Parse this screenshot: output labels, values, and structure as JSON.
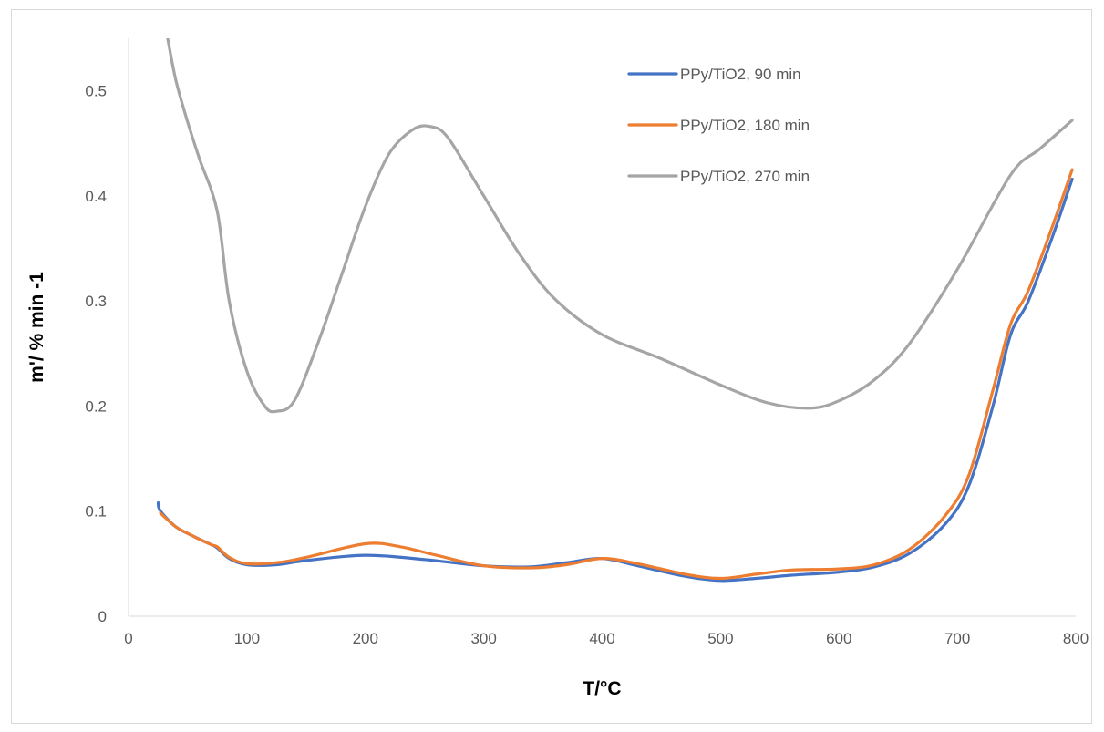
{
  "chart_data": {
    "type": "line",
    "title": "",
    "xlabel": "T/°C",
    "ylabel": "m'/ % min -1",
    "xlim": [
      0,
      800
    ],
    "ylim": [
      0,
      0.55
    ],
    "x_ticks": [
      "0",
      "100",
      "200",
      "300",
      "400",
      "500",
      "600",
      "700",
      "800"
    ],
    "y_ticks": [
      "0",
      "0.1",
      "0.2",
      "0.3",
      "0.4",
      "0.5"
    ],
    "grid": false,
    "legend_position": "top-right",
    "series": [
      {
        "name": "PPy/TiO2, 90 min",
        "color": "#4472C4",
        "x": [
          25,
          27,
          40,
          55,
          70,
          75,
          85,
          100,
          125,
          150,
          200,
          250,
          300,
          340,
          370,
          400,
          430,
          470,
          500,
          530,
          560,
          600,
          630,
          660,
          690,
          710,
          730,
          745,
          760,
          780,
          797
        ],
        "y": [
          0.108,
          0.1,
          0.085,
          0.076,
          0.068,
          0.065,
          0.055,
          0.049,
          0.049,
          0.053,
          0.058,
          0.054,
          0.048,
          0.047,
          0.051,
          0.055,
          0.048,
          0.038,
          0.034,
          0.036,
          0.039,
          0.042,
          0.047,
          0.06,
          0.088,
          0.125,
          0.2,
          0.268,
          0.3,
          0.36,
          0.416
        ]
      },
      {
        "name": "PPy/TiO2, 180 min",
        "color": "#ED7D31",
        "x": [
          27,
          40,
          55,
          70,
          75,
          85,
          100,
          125,
          150,
          200,
          230,
          260,
          300,
          340,
          370,
          400,
          430,
          470,
          500,
          530,
          560,
          600,
          630,
          660,
          690,
          710,
          730,
          745,
          760,
          780,
          797
        ],
        "y": [
          0.098,
          0.085,
          0.076,
          0.068,
          0.066,
          0.056,
          0.05,
          0.051,
          0.056,
          0.069,
          0.066,
          0.058,
          0.048,
          0.046,
          0.049,
          0.055,
          0.05,
          0.04,
          0.036,
          0.04,
          0.044,
          0.045,
          0.049,
          0.064,
          0.096,
          0.135,
          0.215,
          0.278,
          0.31,
          0.37,
          0.425
        ]
      },
      {
        "name": "PPy/TiO2, 270 min",
        "color": "#A5A5A5",
        "x": [
          33,
          40,
          50,
          60,
          75,
          85,
          100,
          115,
          125,
          140,
          160,
          180,
          200,
          220,
          240,
          255,
          270,
          300,
          330,
          360,
          400,
          450,
          500,
          540,
          575,
          600,
          630,
          660,
          700,
          745,
          770,
          797
        ],
        "y": [
          0.55,
          0.51,
          0.47,
          0.435,
          0.385,
          0.3,
          0.233,
          0.2,
          0.195,
          0.205,
          0.26,
          0.325,
          0.39,
          0.44,
          0.463,
          0.466,
          0.455,
          0.4,
          0.345,
          0.302,
          0.268,
          0.245,
          0.22,
          0.203,
          0.198,
          0.205,
          0.225,
          0.26,
          0.33,
          0.42,
          0.445,
          0.472
        ]
      }
    ]
  }
}
